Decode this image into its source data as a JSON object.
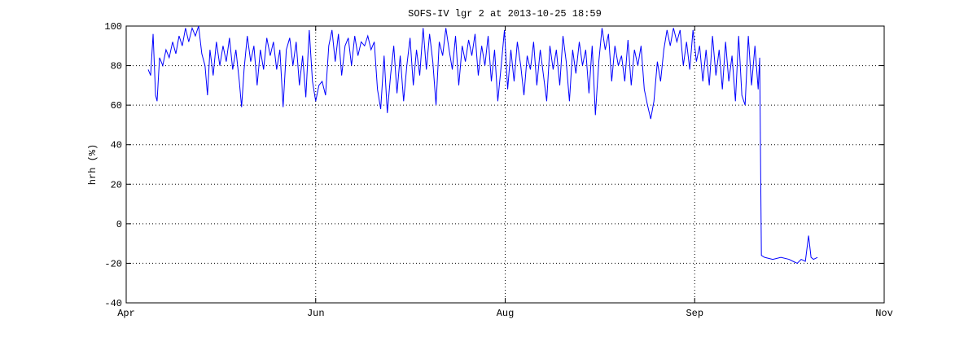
{
  "chart_data": {
    "type": "line",
    "title": "SOFS-IV lgr 2 at 2013-10-25 18:59",
    "y_label": "hrh (%)",
    "xlim": [
      0,
      4
    ],
    "xticks": [
      {
        "value": 0,
        "label": "Apr"
      },
      {
        "value": 1,
        "label": "Jun"
      },
      {
        "value": 2,
        "label": "Aug"
      },
      {
        "value": 3,
        "label": "Sep"
      },
      {
        "value": 4,
        "label": "Nov"
      }
    ],
    "ylim": [
      -40,
      100
    ],
    "yticks": [
      -40,
      -20,
      0,
      20,
      40,
      60,
      80,
      100
    ],
    "grid": true,
    "x": [
      0.116,
      0.129,
      0.142,
      0.155,
      0.163,
      0.176,
      0.193,
      0.21,
      0.227,
      0.245,
      0.262,
      0.279,
      0.296,
      0.313,
      0.33,
      0.348,
      0.365,
      0.382,
      0.399,
      0.416,
      0.429,
      0.442,
      0.459,
      0.476,
      0.494,
      0.511,
      0.528,
      0.545,
      0.562,
      0.579,
      0.597,
      0.609,
      0.622,
      0.639,
      0.657,
      0.674,
      0.691,
      0.708,
      0.725,
      0.742,
      0.76,
      0.777,
      0.794,
      0.811,
      0.828,
      0.845,
      0.863,
      0.88,
      0.897,
      0.914,
      0.931,
      0.948,
      0.966,
      0.983,
      1.0,
      1.017,
      1.034,
      1.052,
      1.069,
      1.086,
      1.103,
      1.12,
      1.137,
      1.155,
      1.172,
      1.189,
      1.206,
      1.223,
      1.24,
      1.258,
      1.275,
      1.292,
      1.309,
      1.326,
      1.343,
      1.361,
      1.378,
      1.395,
      1.412,
      1.429,
      1.446,
      1.464,
      1.481,
      1.498,
      1.515,
      1.532,
      1.549,
      1.567,
      1.584,
      1.601,
      1.618,
      1.635,
      1.652,
      1.67,
      1.687,
      1.704,
      1.721,
      1.738,
      1.755,
      1.773,
      1.79,
      1.807,
      1.824,
      1.841,
      1.858,
      1.876,
      1.893,
      1.91,
      1.927,
      1.944,
      1.961,
      1.979,
      1.996,
      2.013,
      2.03,
      2.047,
      2.064,
      2.082,
      2.099,
      2.116,
      2.133,
      2.15,
      2.167,
      2.185,
      2.202,
      2.219,
      2.236,
      2.253,
      2.27,
      2.288,
      2.305,
      2.322,
      2.339,
      2.356,
      2.373,
      2.391,
      2.408,
      2.425,
      2.442,
      2.459,
      2.476,
      2.494,
      2.511,
      2.528,
      2.545,
      2.562,
      2.579,
      2.597,
      2.614,
      2.631,
      2.648,
      2.665,
      2.682,
      2.7,
      2.717,
      2.734,
      2.751,
      2.768,
      2.785,
      2.803,
      2.82,
      2.837,
      2.854,
      2.871,
      2.888,
      2.906,
      2.923,
      2.94,
      2.957,
      2.974,
      2.991,
      3.009,
      3.026,
      3.043,
      3.06,
      3.077,
      3.094,
      3.112,
      3.129,
      3.146,
      3.163,
      3.18,
      3.197,
      3.215,
      3.232,
      3.249,
      3.266,
      3.283,
      3.3,
      3.318,
      3.335,
      3.343,
      3.352,
      3.369,
      3.412,
      3.455,
      3.498,
      3.519,
      3.541,
      3.562,
      3.584,
      3.601,
      3.614,
      3.627,
      3.648
    ],
    "series": [
      {
        "name": "hrh",
        "color": "#0000ff",
        "values": [
          78,
          75,
          96,
          65,
          62,
          84,
          80,
          88,
          84,
          92,
          86,
          95,
          90,
          99,
          92,
          99,
          95,
          100,
          86,
          80,
          65,
          88,
          75,
          92,
          80,
          90,
          82,
          94,
          78,
          88,
          72,
          59,
          78,
          95,
          82,
          90,
          70,
          88,
          78,
          94,
          85,
          92,
          78,
          88,
          59,
          88,
          94,
          80,
          92,
          70,
          85,
          64,
          98,
          72,
          62,
          70,
          72,
          65,
          90,
          98,
          82,
          96,
          75,
          90,
          94,
          80,
          95,
          85,
          92,
          90,
          95,
          88,
          92,
          68,
          58,
          85,
          56,
          75,
          90,
          66,
          85,
          62,
          80,
          94,
          70,
          88,
          75,
          99,
          78,
          96,
          82,
          60,
          92,
          85,
          99,
          88,
          78,
          95,
          70,
          90,
          82,
          93,
          85,
          96,
          75,
          90,
          80,
          95,
          72,
          88,
          62,
          80,
          98,
          68,
          88,
          72,
          92,
          80,
          65,
          85,
          78,
          92,
          70,
          88,
          75,
          62,
          90,
          78,
          88,
          70,
          95,
          82,
          62,
          88,
          76,
          92,
          80,
          88,
          66,
          90,
          55,
          82,
          99,
          88,
          96,
          72,
          90,
          80,
          85,
          72,
          93,
          70,
          88,
          80,
          90,
          68,
          60,
          53,
          62,
          82,
          72,
          88,
          98,
          90,
          99,
          92,
          98,
          80,
          92,
          78,
          98,
          82,
          90,
          72,
          88,
          70,
          95,
          75,
          88,
          68,
          92,
          72,
          85,
          62,
          95,
          65,
          60,
          95,
          70,
          90,
          68,
          84,
          -16,
          -17,
          -18,
          -17,
          -18,
          -19,
          -20,
          -18,
          -19,
          -6,
          -17,
          -18,
          -17
        ]
      }
    ]
  }
}
